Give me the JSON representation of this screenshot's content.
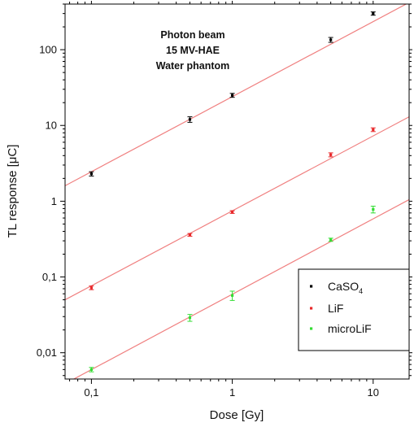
{
  "chart_data": {
    "type": "scatter",
    "x_scale": "log",
    "y_scale": "log",
    "xlabel": "Dose [Gy]",
    "ylabel": "TL response [μC]",
    "xlim": [
      0.065,
      18
    ],
    "ylim": [
      0.0045,
      400
    ],
    "x_ticks": [
      {
        "value": 0.1,
        "label": "0,1"
      },
      {
        "value": 1,
        "label": "1"
      },
      {
        "value": 10,
        "label": "10"
      }
    ],
    "y_ticks": [
      {
        "value": 0.01,
        "label": "0,01"
      },
      {
        "value": 0.1,
        "label": "0,1"
      },
      {
        "value": 1,
        "label": "1"
      },
      {
        "value": 10,
        "label": "10"
      },
      {
        "value": 100,
        "label": "100"
      }
    ],
    "annotation": [
      "Photon beam",
      "15 MV-HAE",
      "Water phantom"
    ],
    "grid": false,
    "legend_position": "bottom-right",
    "fit_line_color": "#f08080",
    "series": [
      {
        "name": "CaSO",
        "name_subscript": "4",
        "color": "#000000",
        "x": [
          0.1,
          0.5,
          1,
          5,
          10
        ],
        "y": [
          2.3,
          12,
          25,
          135,
          300
        ],
        "err": [
          0.15,
          1.0,
          1.5,
          10,
          15
        ],
        "fit": {
          "x": [
            0.065,
            18
          ],
          "y": [
            1.6,
            420
          ]
        }
      },
      {
        "name": "LiF",
        "color": "#e8282a",
        "x": [
          0.1,
          0.5,
          1,
          5,
          10
        ],
        "y": [
          0.072,
          0.36,
          0.72,
          4.1,
          8.8
        ],
        "err": [
          0.004,
          0.015,
          0.03,
          0.25,
          0.5
        ],
        "fit": {
          "x": [
            0.065,
            18
          ],
          "y": [
            0.05,
            13
          ]
        }
      },
      {
        "name": "microLiF",
        "color": "#33dd33",
        "x": [
          0.1,
          0.5,
          1,
          5,
          10
        ],
        "y": [
          0.006,
          0.029,
          0.057,
          0.31,
          0.78
        ],
        "err": [
          0.0004,
          0.003,
          0.008,
          0.015,
          0.08
        ],
        "fit": {
          "x": [
            0.065,
            18
          ],
          "y": [
            0.0039,
            1.05
          ]
        }
      }
    ]
  }
}
